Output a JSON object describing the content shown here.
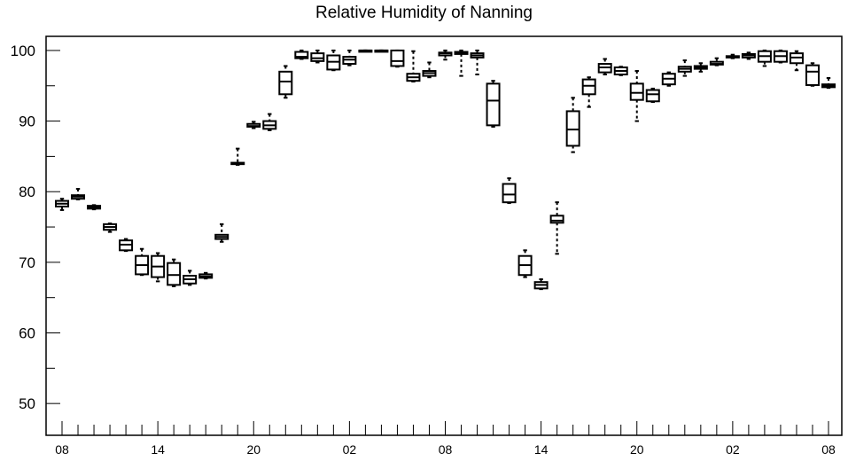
{
  "chart_data": {
    "type": "box",
    "title": "Relative Humidity of Nanning",
    "xlabel": "",
    "ylabel": "",
    "ylim": [
      45.5,
      102
    ],
    "y_ticks": [
      50,
      60,
      70,
      80,
      90,
      100
    ],
    "x_tick_labels": [
      "08",
      "14",
      "20",
      "02",
      "08",
      "14",
      "20",
      "02",
      "08"
    ],
    "x_tick_hours": [
      0,
      6,
      12,
      18,
      24,
      30,
      36,
      42,
      48
    ],
    "grid": false,
    "boxes": [
      {
        "hour": 0,
        "min": 77.4,
        "q1": 77.9,
        "median": 78.3,
        "q3": 78.7,
        "max": 79.0
      },
      {
        "hour": 1,
        "min": 78.9,
        "q1": 79.0,
        "median": 79.3,
        "q3": 79.5,
        "max": 80.4
      },
      {
        "hour": 2,
        "min": 77.5,
        "q1": 77.6,
        "median": 77.8,
        "q3": 78.0,
        "max": 78.1
      },
      {
        "hour": 3,
        "min": 74.3,
        "q1": 74.6,
        "median": 75.0,
        "q3": 75.4,
        "max": 75.5
      },
      {
        "hour": 4,
        "min": 71.6,
        "q1": 71.7,
        "median": 72.5,
        "q3": 73.1,
        "max": 73.3
      },
      {
        "hour": 5,
        "min": 68.2,
        "q1": 68.3,
        "median": 69.6,
        "q3": 70.9,
        "max": 71.9
      },
      {
        "hour": 6,
        "min": 67.3,
        "q1": 67.9,
        "median": 69.4,
        "q3": 70.9,
        "max": 71.3
      },
      {
        "hour": 7,
        "min": 66.6,
        "q1": 66.8,
        "median": 68.2,
        "q3": 69.9,
        "max": 70.4
      },
      {
        "hour": 8,
        "min": 66.8,
        "q1": 67.0,
        "median": 67.6,
        "q3": 68.1,
        "max": 68.8
      },
      {
        "hour": 9,
        "min": 67.7,
        "q1": 67.8,
        "median": 68.0,
        "q3": 68.3,
        "max": 68.5
      },
      {
        "hour": 10,
        "min": 72.9,
        "q1": 73.3,
        "median": 73.6,
        "q3": 73.9,
        "max": 75.4
      },
      {
        "hour": 11,
        "min": 83.8,
        "q1": 83.9,
        "median": 84.0,
        "q3": 84.1,
        "max": 86.1
      },
      {
        "hour": 12,
        "min": 89.0,
        "q1": 89.2,
        "median": 89.3,
        "q3": 89.6,
        "max": 89.9
      },
      {
        "hour": 13,
        "min": 88.7,
        "q1": 88.9,
        "median": 89.4,
        "q3": 90.0,
        "max": 91.0
      },
      {
        "hour": 14,
        "min": 93.3,
        "q1": 93.8,
        "median": 95.6,
        "q3": 97.0,
        "max": 97.8
      },
      {
        "hour": 15,
        "min": 98.8,
        "q1": 98.9,
        "median": 99.1,
        "q3": 99.8,
        "max": 100.0
      },
      {
        "hour": 16,
        "min": 98.3,
        "q1": 98.5,
        "median": 98.9,
        "q3": 99.6,
        "max": 100.0
      },
      {
        "hour": 17,
        "min": 97.2,
        "q1": 97.3,
        "median": 98.4,
        "q3": 99.3,
        "max": 100.0
      },
      {
        "hour": 18,
        "min": 97.9,
        "q1": 98.1,
        "median": 98.7,
        "q3": 99.1,
        "max": 100.0
      },
      {
        "hour": 19,
        "min": 100.0,
        "q1": 100.0,
        "median": 100.0,
        "q3": 100.0,
        "max": 100.0
      },
      {
        "hour": 20,
        "min": 100.0,
        "q1": 100.0,
        "median": 100.0,
        "q3": 100.0,
        "max": 100.0
      },
      {
        "hour": 21,
        "min": 97.7,
        "q1": 97.8,
        "median": 98.5,
        "q3": 100.0,
        "max": 100.0
      },
      {
        "hour": 22,
        "min": 95.6,
        "q1": 95.7,
        "median": 96.2,
        "q3": 96.7,
        "max": 99.9
      },
      {
        "hour": 23,
        "min": 96.2,
        "q1": 96.4,
        "median": 96.8,
        "q3": 97.1,
        "max": 98.3
      },
      {
        "hour": 24,
        "min": 98.7,
        "q1": 99.3,
        "median": 99.6,
        "q3": 99.7,
        "max": 100.0
      },
      {
        "hour": 25,
        "min": 96.4,
        "q1": 99.5,
        "median": 99.7,
        "q3": 99.8,
        "max": 100.0
      },
      {
        "hour": 26,
        "min": 96.6,
        "q1": 99.0,
        "median": 99.3,
        "q3": 99.6,
        "max": 100.0
      },
      {
        "hour": 27,
        "min": 89.2,
        "q1": 89.4,
        "median": 92.9,
        "q3": 95.3,
        "max": 95.7
      },
      {
        "hour": 28,
        "min": 78.4,
        "q1": 78.5,
        "median": 79.6,
        "q3": 81.1,
        "max": 81.9
      },
      {
        "hour": 29,
        "min": 67.9,
        "q1": 68.2,
        "median": 69.6,
        "q3": 70.9,
        "max": 71.7
      },
      {
        "hour": 30,
        "min": 66.2,
        "q1": 66.3,
        "median": 66.8,
        "q3": 67.2,
        "max": 67.6
      },
      {
        "hour": 31,
        "min": 71.2,
        "q1": 75.6,
        "median": 75.9,
        "q3": 76.6,
        "max": 78.5
      },
      {
        "hour": 32,
        "min": 85.6,
        "q1": 86.5,
        "median": 88.8,
        "q3": 91.4,
        "max": 93.3
      },
      {
        "hour": 33,
        "min": 92.0,
        "q1": 93.8,
        "median": 95.0,
        "q3": 95.9,
        "max": 96.2
      },
      {
        "hour": 34,
        "min": 96.6,
        "q1": 96.9,
        "median": 97.6,
        "q3": 98.1,
        "max": 98.8
      },
      {
        "hour": 35,
        "min": 96.5,
        "q1": 96.6,
        "median": 97.1,
        "q3": 97.6,
        "max": 97.7
      },
      {
        "hour": 36,
        "min": 90.0,
        "q1": 93.0,
        "median": 94.0,
        "q3": 95.3,
        "max": 97.1
      },
      {
        "hour": 37,
        "min": 92.7,
        "q1": 92.8,
        "median": 93.8,
        "q3": 94.4,
        "max": 94.6
      },
      {
        "hour": 38,
        "min": 95.0,
        "q1": 95.2,
        "median": 96.0,
        "q3": 96.7,
        "max": 96.9
      },
      {
        "hour": 39,
        "min": 96.4,
        "q1": 97.0,
        "median": 97.4,
        "q3": 97.7,
        "max": 98.6
      },
      {
        "hour": 40,
        "min": 97.0,
        "q1": 97.4,
        "median": 97.6,
        "q3": 97.8,
        "max": 98.2
      },
      {
        "hour": 41,
        "min": 97.9,
        "q1": 98.0,
        "median": 98.1,
        "q3": 98.4,
        "max": 98.9
      },
      {
        "hour": 42,
        "min": 98.9,
        "q1": 99.0,
        "median": 99.1,
        "q3": 99.2,
        "max": 99.4
      },
      {
        "hour": 43,
        "min": 98.8,
        "q1": 99.0,
        "median": 99.3,
        "q3": 99.5,
        "max": 99.7
      },
      {
        "hour": 44,
        "min": 97.8,
        "q1": 98.4,
        "median": 99.2,
        "q3": 99.9,
        "max": 100.0
      },
      {
        "hour": 45,
        "min": 98.3,
        "q1": 98.4,
        "median": 99.2,
        "q3": 99.9,
        "max": 100.0
      },
      {
        "hour": 46,
        "min": 97.2,
        "q1": 98.2,
        "median": 99.0,
        "q3": 99.6,
        "max": 99.9
      },
      {
        "hour": 47,
        "min": 95.0,
        "q1": 95.1,
        "median": 97.0,
        "q3": 97.9,
        "max": 98.2
      },
      {
        "hour": 48,
        "min": 94.7,
        "q1": 94.8,
        "median": 95.0,
        "q3": 95.2,
        "max": 96.1
      }
    ]
  }
}
